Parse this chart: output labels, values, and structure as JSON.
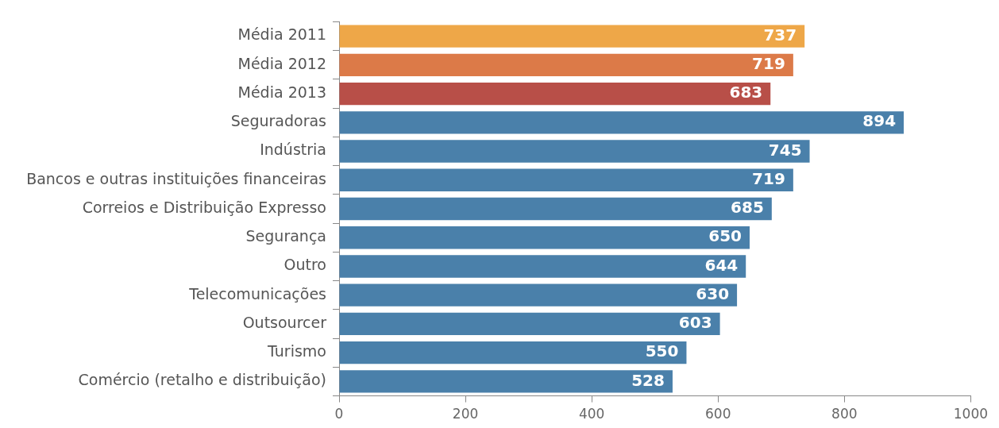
{
  "chart_data": {
    "type": "bar",
    "orientation": "horizontal",
    "categories": [
      "Média 2011",
      "Média 2012",
      "Média 2013",
      "Seguradoras",
      "Indústria",
      "Bancos e outras instituições financeiras",
      "Correios e Distribuição Expresso",
      "Segurança",
      "Outro",
      "Telecomunicações",
      "Outsourcer",
      "Turismo",
      "Comércio (retalho e distribuição)"
    ],
    "values": [
      737,
      719,
      683,
      894,
      745,
      719,
      685,
      650,
      644,
      630,
      603,
      550,
      528
    ],
    "colors": [
      "#eea748",
      "#dc7a48",
      "#b84f48",
      "#4a80aa",
      "#4a80aa",
      "#4a80aa",
      "#4a80aa",
      "#4a80aa",
      "#4a80aa",
      "#4a80aa",
      "#4a80aa",
      "#4a80aa",
      "#4a80aa"
    ],
    "xlim": [
      0,
      1000
    ],
    "xticks": [
      0,
      200,
      400,
      600,
      800,
      1000
    ],
    "grid": false,
    "legend": false,
    "data_labels": true
  }
}
